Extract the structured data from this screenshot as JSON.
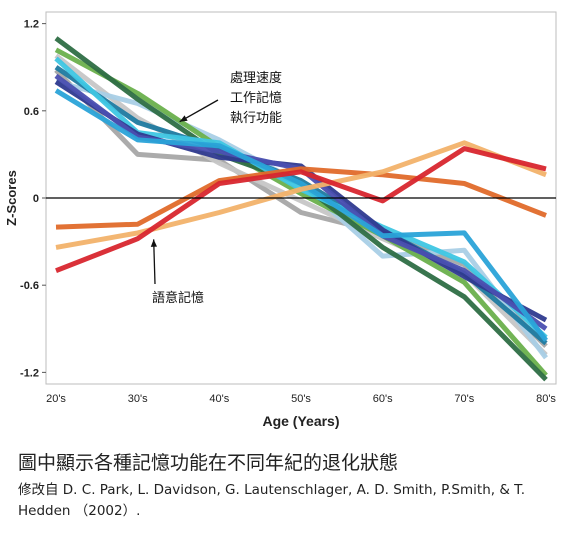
{
  "chart_data": {
    "type": "line",
    "title": "",
    "xlabel": "Age (Years)",
    "ylabel": "Z-Scores",
    "categories": [
      "20's",
      "30's",
      "40's",
      "50's",
      "60's",
      "70's",
      "80's"
    ],
    "yticks": [
      "1.2",
      "0.6",
      "0",
      "-0.6",
      "-1.2"
    ],
    "ylim": [
      -1.28,
      1.28
    ],
    "grid": false,
    "zero_line": true,
    "series": [
      {
        "color": "#a6a6a6",
        "values": [
          0.88,
          0.3,
          0.26,
          -0.1,
          -0.24,
          -0.46,
          -1.02
        ]
      },
      {
        "color": "#c6c6c6",
        "values": [
          0.98,
          0.55,
          0.24,
          -0.02,
          -0.28,
          -0.52,
          -1.08
        ]
      },
      {
        "color": "#a9cfe6",
        "values": [
          0.8,
          0.65,
          0.4,
          0.1,
          -0.4,
          -0.36,
          -1.1
        ]
      },
      {
        "color": "#6ab04c",
        "values": [
          1.02,
          0.72,
          0.35,
          0.03,
          -0.26,
          -0.58,
          -1.22
        ]
      },
      {
        "color": "#2e6e44",
        "values": [
          1.1,
          0.68,
          0.3,
          0.1,
          -0.34,
          -0.68,
          -1.25
        ]
      },
      {
        "color": "#1f7aa0",
        "values": [
          0.9,
          0.52,
          0.34,
          0.12,
          -0.22,
          -0.52,
          -1.0
        ]
      },
      {
        "color": "#3ec6e3",
        "values": [
          0.96,
          0.45,
          0.38,
          0.06,
          -0.2,
          -0.44,
          -0.96
        ]
      },
      {
        "color": "#2f3a8f",
        "values": [
          0.8,
          0.44,
          0.28,
          0.22,
          -0.22,
          -0.54,
          -0.84
        ]
      },
      {
        "color": "#4a4fb0",
        "values": [
          0.84,
          0.42,
          0.32,
          0.2,
          -0.26,
          -0.5,
          -0.9
        ]
      },
      {
        "color": "#2aa3d8",
        "values": [
          0.74,
          0.4,
          0.36,
          0.1,
          -0.26,
          -0.24,
          -0.98
        ]
      },
      {
        "color": "#e06a2a",
        "values": [
          -0.2,
          -0.18,
          0.12,
          0.2,
          0.16,
          0.1,
          -0.12
        ]
      },
      {
        "color": "#f2b26a",
        "values": [
          -0.34,
          -0.24,
          -0.1,
          0.06,
          0.18,
          0.38,
          0.16
        ]
      },
      {
        "color": "#d8262e",
        "values": [
          -0.5,
          -0.28,
          0.1,
          0.18,
          -0.02,
          0.34,
          0.2
        ]
      }
    ],
    "annotations": [
      {
        "text_lines": [
          "處理速度",
          "工作記憶",
          "執行功能"
        ],
        "arrow_to": {
          "x": "30's",
          "y": 0.58
        }
      },
      {
        "text_lines": [
          "語意記憶"
        ],
        "arrow_to": {
          "x": "30's",
          "y": -0.34
        }
      }
    ]
  },
  "caption": {
    "title": "圖中顯示各種記憶功能在不同年紀的退化狀態",
    "source": "修改自 D. C. Park, L. Davidson, G. Lautenschlager, A. D. Smith, P.Smith, & T. Hedden （2002）."
  }
}
